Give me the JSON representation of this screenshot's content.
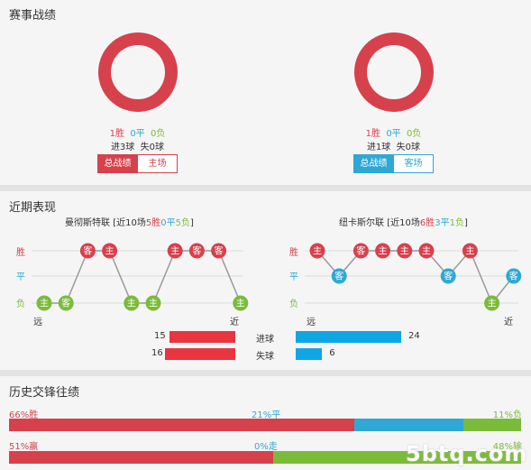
{
  "colors": {
    "win": "#d6414c",
    "draw": "#2fa8d5",
    "loss": "#7bbb3a",
    "home_btn": "#d6414c",
    "away_btn": "#2fa8d5"
  },
  "record": {
    "title": "赛事战绩",
    "home": {
      "win": "1胜",
      "draw": "0平",
      "loss": "0负",
      "goals": "进3球",
      "conceded": "失0球",
      "btn_total": "总战绩",
      "btn_venue": "主场"
    },
    "away": {
      "win": "1胜",
      "draw": "0平",
      "loss": "0负",
      "goals": "进1球",
      "conceded": "失0球",
      "btn_total": "总战绩",
      "btn_venue": "客场"
    }
  },
  "recent": {
    "title": "近期表现",
    "axis": {
      "win": "胜",
      "draw": "平",
      "loss": "负",
      "far": "远",
      "near": "近"
    },
    "home": {
      "team": "曼彻斯特联",
      "summary_prefix": "[近10场",
      "w": "5胜",
      "d": "0平",
      "l": "5负",
      "summary_suffix": "]",
      "results": [
        "L",
        "L",
        "W",
        "W",
        "L",
        "L",
        "W",
        "W",
        "W",
        "L"
      ],
      "venues": [
        "主",
        "客",
        "客",
        "主",
        "主",
        "主",
        "主",
        "客",
        "客",
        "主"
      ]
    },
    "away": {
      "team": "纽卡斯尔联",
      "summary_prefix": "[近10场",
      "w": "6胜",
      "d": "3平",
      "l": "1负",
      "summary_suffix": "]",
      "results": [
        "W",
        "D",
        "W",
        "W",
        "W",
        "W",
        "D",
        "W",
        "L",
        "D"
      ],
      "venues": [
        "主",
        "客",
        "客",
        "主",
        "主",
        "主",
        "客",
        "主",
        "主",
        "客"
      ]
    },
    "goals": {
      "home_scored": "15",
      "home_conceded": "16",
      "away_scored": "24",
      "away_conceded": "6",
      "scored_label": "进球",
      "conceded_label": "失球"
    },
    "goals_values": {
      "home_scored": 15,
      "home_conceded": 16,
      "away_scored": 24,
      "away_conceded": 6
    }
  },
  "history": {
    "title": "历史交锋往绩",
    "row1": {
      "left": "66%胜",
      "mid": "21%平",
      "right": "11%负",
      "win_pct": 66,
      "draw_pct": 21,
      "loss_pct": 11
    },
    "row2": {
      "left": "51%赢",
      "mid": "0%走",
      "right": "48%输",
      "win_pct": 51,
      "draw_pct": 0,
      "loss_pct": 48
    }
  },
  "watermark": "5btq.com"
}
